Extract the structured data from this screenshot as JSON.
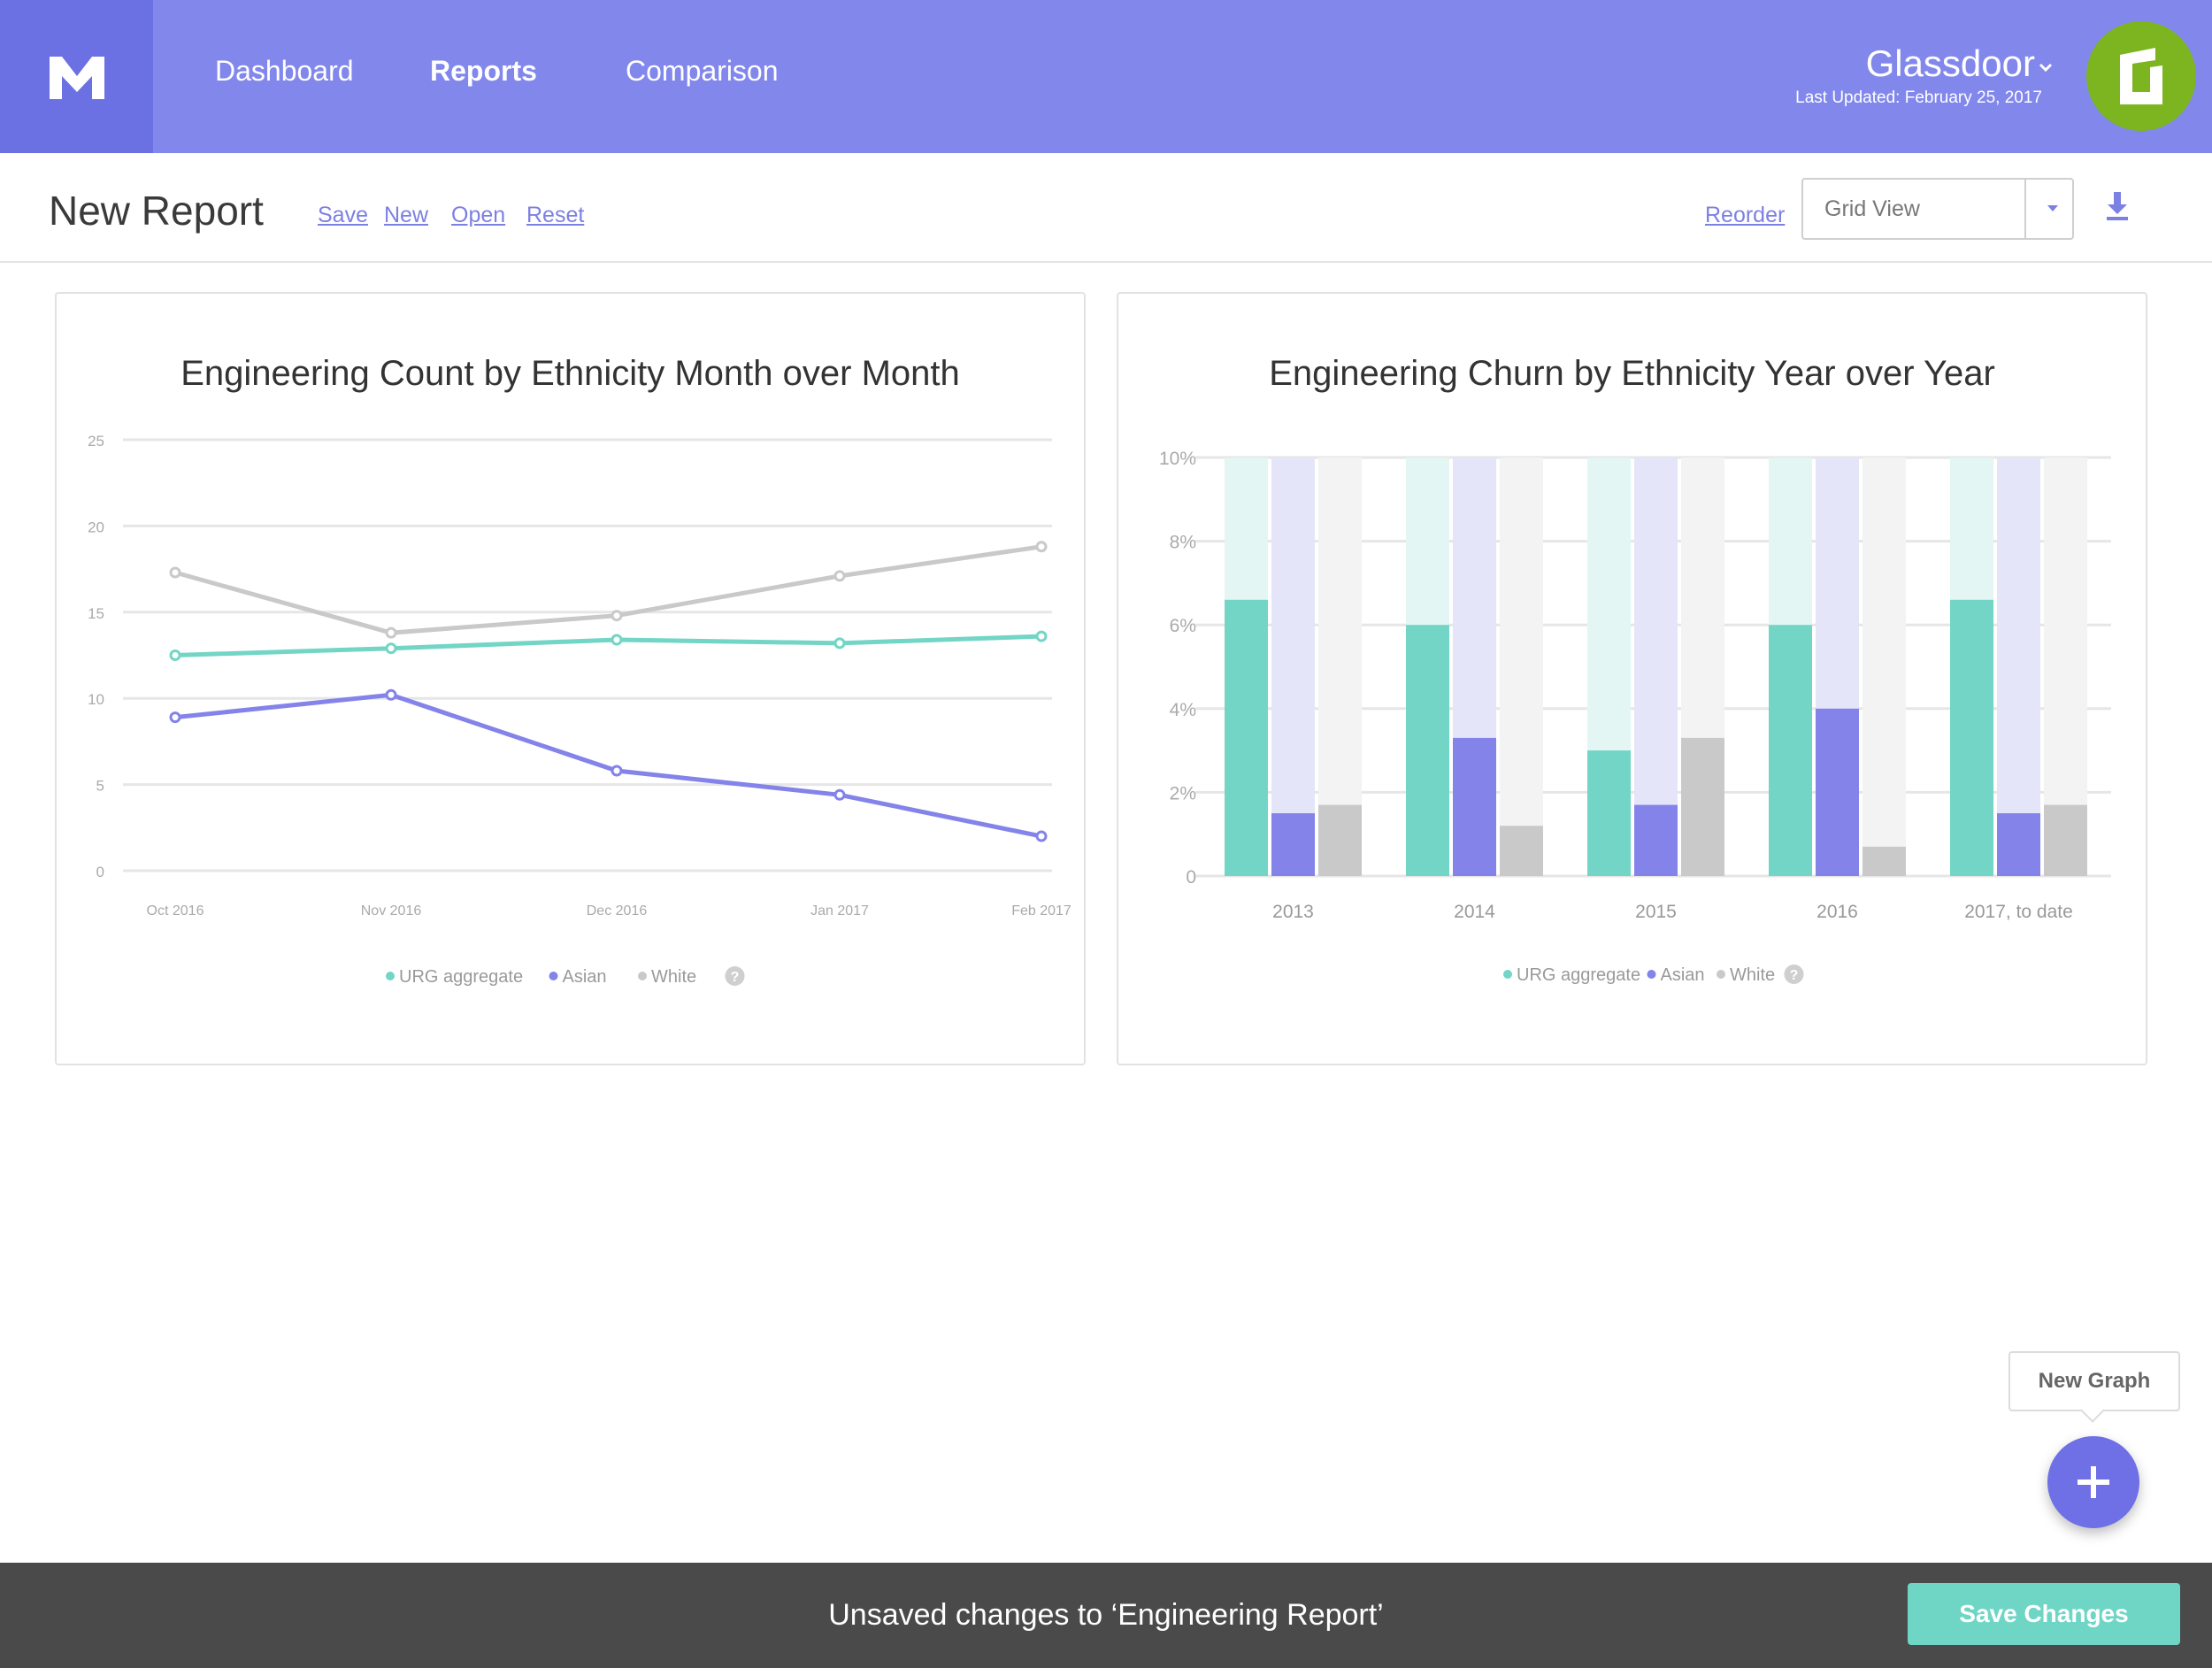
{
  "nav": {
    "links": [
      "Dashboard",
      "Reports",
      "Comparison"
    ],
    "active": "Reports",
    "org_name": "Glassdoor",
    "last_updated": "Last Updated: February 25, 2017"
  },
  "toolbar": {
    "title": "New Report",
    "actions": [
      "Save",
      "New",
      "Open",
      "Reset"
    ],
    "reorder_label": "Reorder",
    "view_value": "Grid View"
  },
  "colors": {
    "urg": "#72d5c5",
    "asian": "#8383ea",
    "white": "#c9c9c9",
    "nav": "#8287ec",
    "accent": "#7d80e3"
  },
  "chart_data": [
    {
      "type": "line",
      "title": "Engineering Count by Ethnicity Month over Month",
      "x": [
        "Oct 2016",
        "Nov 2016",
        "Dec 2016",
        "Jan 2017",
        "Feb 2017"
      ],
      "y_ticks": [
        "25",
        "20",
        "15",
        "10",
        "5",
        "0"
      ],
      "ylim": [
        0,
        25
      ],
      "series": [
        {
          "name": "URG aggregate",
          "values": [
            12.5,
            12.9,
            13.4,
            13.2,
            13.6
          ]
        },
        {
          "name": "Asian",
          "values": [
            8.9,
            10.2,
            5.8,
            4.4,
            2.0
          ]
        },
        {
          "name": "White",
          "values": [
            17.3,
            13.8,
            14.8,
            17.1,
            18.8
          ]
        }
      ],
      "legend": [
        "URG aggregate",
        "Asian",
        "White"
      ]
    },
    {
      "type": "bar",
      "title": "Engineering Churn by Ethnicity Year over Year",
      "categories": [
        "2013",
        "2014",
        "2015",
        "2016",
        "2017, to date"
      ],
      "y_ticks": [
        "10%",
        "8%",
        "6%",
        "4%",
        "2%",
        "0"
      ],
      "ylim": [
        0,
        10
      ],
      "series": [
        {
          "name": "URG aggregate",
          "values": [
            6.6,
            6.0,
            3.0,
            6.0,
            6.6
          ]
        },
        {
          "name": "Asian",
          "values": [
            1.5,
            3.3,
            1.7,
            4.0,
            1.5
          ]
        },
        {
          "name": "White",
          "values": [
            1.7,
            1.2,
            3.3,
            0.7,
            1.7
          ]
        }
      ],
      "legend": [
        "URG aggregate",
        "Asian",
        "White"
      ]
    }
  ],
  "fab": {
    "tooltip": "New Graph"
  },
  "footer": {
    "message": "Unsaved changes to ‘Engineering Report’",
    "save_label": "Save Changes"
  }
}
